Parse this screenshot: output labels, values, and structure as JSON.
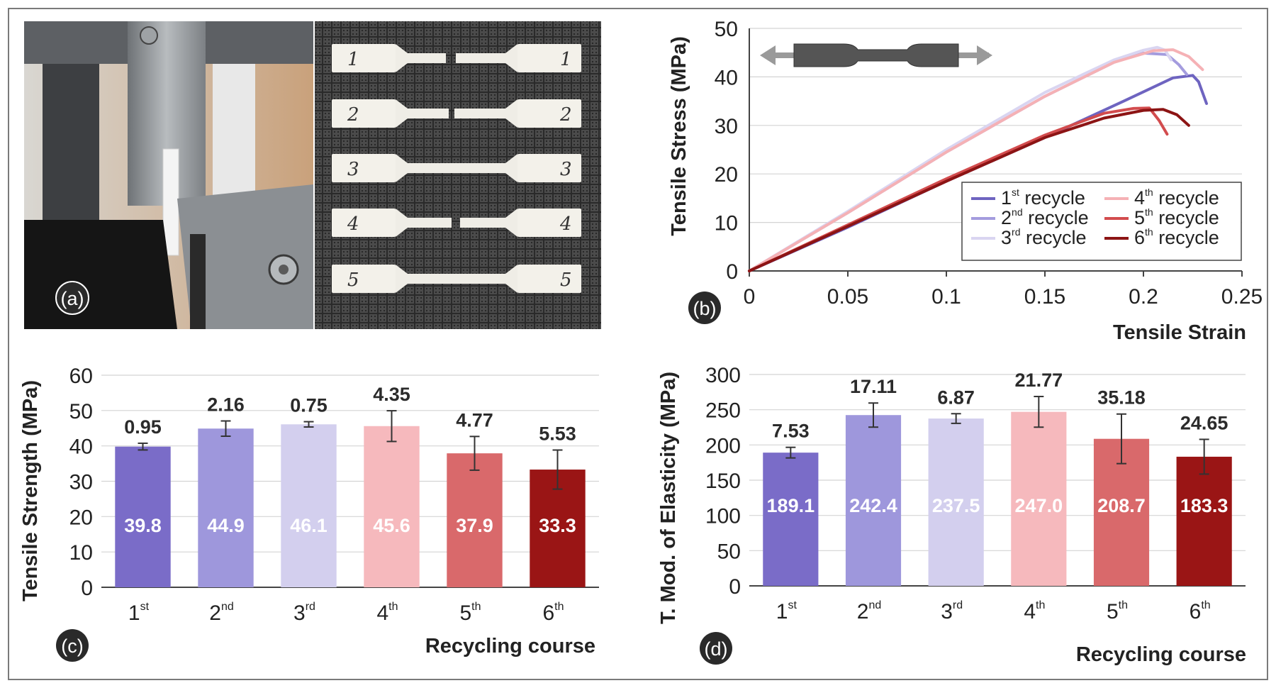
{
  "figure": {
    "panel_labels": [
      "(a)",
      "(b)",
      "(c)",
      "(d)"
    ]
  },
  "photo": {
    "description_tag": "tensile-test-photo",
    "specimen_labels_left": [
      "1",
      "2",
      "3",
      "4",
      "5"
    ],
    "specimen_labels_right": [
      "1",
      "2",
      "3",
      "4",
      "5"
    ]
  },
  "colors": {
    "r1": "#7a6cc8",
    "r2": "#9e97dc",
    "r3": "#d3cfee",
    "r4": "#f6b9bd",
    "r5": "#d9696b",
    "r6": "#9a1515"
  },
  "chart_data": [
    {
      "id": "b",
      "type": "line",
      "xlabel": "Tensile Strain",
      "ylabel": "Tensile Stress (MPa)",
      "xlim": [
        0,
        0.25
      ],
      "ylim": [
        0,
        50
      ],
      "xticks": [
        "0",
        "0.05",
        "0.1",
        "0.15",
        "0.2",
        "0.25"
      ],
      "yticks": [
        "0",
        "10",
        "20",
        "30",
        "40",
        "50"
      ],
      "grid": true,
      "legend_position": "bottom-right",
      "series": [
        {
          "name": "1",
          "sup": "st",
          "suffix": " recycle",
          "color": "#6e64c0",
          "points": [
            [
              0,
              0
            ],
            [
              0.05,
              9
            ],
            [
              0.1,
              18.5
            ],
            [
              0.15,
              27.5
            ],
            [
              0.19,
              35
            ],
            [
              0.215,
              39.8
            ],
            [
              0.225,
              40.3
            ],
            [
              0.228,
              39
            ],
            [
              0.232,
              34.5
            ]
          ]
        },
        {
          "name": "2",
          "sup": "nd",
          "suffix": " recycle",
          "color": "#a49cde",
          "points": [
            [
              0,
              0
            ],
            [
              0.05,
              12
            ],
            [
              0.1,
              24.5
            ],
            [
              0.15,
              36
            ],
            [
              0.185,
              43
            ],
            [
              0.2,
              44.9
            ],
            [
              0.212,
              44.6
            ],
            [
              0.218,
              42.5
            ],
            [
              0.222,
              40.5
            ]
          ]
        },
        {
          "name": "3",
          "sup": "rd",
          "suffix": " recycle",
          "color": "#d9d5f1",
          "points": [
            [
              0,
              0
            ],
            [
              0.05,
              12.3
            ],
            [
              0.1,
              25
            ],
            [
              0.15,
              36.8
            ],
            [
              0.185,
              43.5
            ],
            [
              0.2,
              45.5
            ],
            [
              0.207,
              46.1
            ],
            [
              0.211,
              45.5
            ],
            [
              0.214,
              43.5
            ]
          ]
        },
        {
          "name": "4",
          "sup": "th",
          "suffix": " recycle",
          "color": "#f5b1b5",
          "points": [
            [
              0,
              0
            ],
            [
              0.05,
              12
            ],
            [
              0.1,
              24.5
            ],
            [
              0.15,
              36
            ],
            [
              0.185,
              43
            ],
            [
              0.205,
              45.4
            ],
            [
              0.215,
              45.6
            ],
            [
              0.223,
              44.2
            ],
            [
              0.23,
              41.5
            ]
          ]
        },
        {
          "name": "5",
          "sup": "th",
          "suffix": " recycle",
          "color": "#d24c4e",
          "points": [
            [
              0,
              0
            ],
            [
              0.05,
              9.5
            ],
            [
              0.1,
              19
            ],
            [
              0.15,
              28
            ],
            [
              0.18,
              32.5
            ],
            [
              0.195,
              33.5
            ],
            [
              0.203,
              33.6
            ],
            [
              0.208,
              31
            ],
            [
              0.212,
              28.2
            ]
          ]
        },
        {
          "name": "6",
          "sup": "th",
          "suffix": " recycle",
          "color": "#8c1414",
          "points": [
            [
              0,
              0
            ],
            [
              0.05,
              9.2
            ],
            [
              0.1,
              18.5
            ],
            [
              0.15,
              27.5
            ],
            [
              0.18,
              31.5
            ],
            [
              0.2,
              33.1
            ],
            [
              0.21,
              33.3
            ],
            [
              0.217,
              32.2
            ],
            [
              0.223,
              30
            ]
          ]
        }
      ]
    },
    {
      "id": "c",
      "type": "bar",
      "xlabel": "Recycling course",
      "ylabel": "Tensile Strength (MPa)",
      "ylim": [
        0,
        60
      ],
      "yticks": [
        "0",
        "10",
        "20",
        "30",
        "40",
        "50",
        "60"
      ],
      "grid": true,
      "categories": [
        {
          "num": "1",
          "sup": "st"
        },
        {
          "num": "2",
          "sup": "nd"
        },
        {
          "num": "3",
          "sup": "rd"
        },
        {
          "num": "4",
          "sup": "th"
        },
        {
          "num": "5",
          "sup": "th"
        },
        {
          "num": "6",
          "sup": "th"
        }
      ],
      "values": [
        39.8,
        44.9,
        46.1,
        45.6,
        37.9,
        33.3
      ],
      "errors": [
        0.95,
        2.16,
        0.75,
        4.35,
        4.77,
        5.53
      ],
      "value_labels": [
        "39.8",
        "44.9",
        "46.1",
        "45.6",
        "37.9",
        "33.3"
      ],
      "error_labels": [
        "0.95",
        "2.16",
        "0.75",
        "4.35",
        "4.77",
        "5.53"
      ],
      "bar_colors": [
        "#7a6cc8",
        "#9e97dc",
        "#d3cfee",
        "#f6b9bd",
        "#d9696b",
        "#9a1515"
      ]
    },
    {
      "id": "d",
      "type": "bar",
      "xlabel": "Recycling course",
      "ylabel": "T. Mod. of Elasticity (MPa)",
      "ylim": [
        0,
        300
      ],
      "yticks": [
        "0",
        "50",
        "100",
        "150",
        "200",
        "250",
        "300"
      ],
      "grid": true,
      "categories": [
        {
          "num": "1",
          "sup": "st"
        },
        {
          "num": "2",
          "sup": "nd"
        },
        {
          "num": "3",
          "sup": "rd"
        },
        {
          "num": "4",
          "sup": "th"
        },
        {
          "num": "5",
          "sup": "th"
        },
        {
          "num": "6",
          "sup": "th"
        }
      ],
      "values": [
        189.1,
        242.4,
        237.5,
        247.0,
        208.7,
        183.3
      ],
      "errors": [
        7.53,
        17.11,
        6.87,
        21.77,
        35.18,
        24.65
      ],
      "value_labels": [
        "189.1",
        "242.4",
        "237.5",
        "247.0",
        "208.7",
        "183.3"
      ],
      "error_labels": [
        "7.53",
        "17.11",
        "6.87",
        "21.77",
        "35.18",
        "24.65"
      ],
      "bar_colors": [
        "#7a6cc8",
        "#9e97dc",
        "#d3cfee",
        "#f6b9bd",
        "#d9696b",
        "#9a1515"
      ]
    }
  ]
}
